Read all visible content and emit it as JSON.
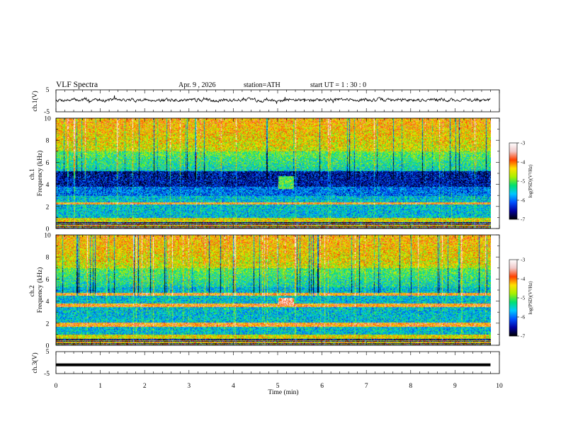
{
  "header": {
    "title": "VLF  Spectra",
    "date": "Apr. 9  , 2026",
    "station": "station=ATH",
    "start": "start  UT  =   1  : 30 : 0"
  },
  "chart_data": [
    {
      "type": "line",
      "panel": "ch1-waveform",
      "ylabel": "ch.1(V)",
      "ylim": [
        -5,
        5
      ],
      "yticks": [
        "5",
        "-5"
      ],
      "xlim": [
        0,
        10
      ],
      "trace_level_V": 0.4,
      "trace_amplitude_V": 1.0
    },
    {
      "type": "heatmap",
      "panel": "ch1-spectrogram",
      "ylabel": "ch.1\nFrequency  (kHz)",
      "ylim": [
        0,
        10
      ],
      "yticks": [
        "0",
        "2",
        "4",
        "6",
        "8",
        "10"
      ],
      "xlim": [
        0,
        9.8
      ],
      "colorbar": {
        "label": "log(PSD)(V²/Hz)",
        "range": [
          -7,
          -3
        ],
        "ticks": [
          "-3",
          "-4",
          "-5",
          "-6",
          "-7"
        ]
      },
      "bands": [
        {
          "freq_range_kHz": [
            3.8,
            5.2
          ],
          "log_psd": -6.5
        },
        {
          "freq_range_kHz": [
            3.0,
            3.8
          ],
          "log_psd": -6.0
        },
        {
          "freq_range_kHz": [
            2.2,
            2.4
          ],
          "log_psd": -4.0
        },
        {
          "freq_range_kHz": [
            0.6,
            1.0
          ],
          "log_psd": -4.5
        }
      ],
      "burst": {
        "time_min": [
          5.0,
          5.35
        ],
        "freq_range_kHz": [
          3.6,
          4.8
        ],
        "log_psd": -5.0
      }
    },
    {
      "type": "heatmap",
      "panel": "ch2-spectrogram",
      "ylabel": "ch.2\nFrequency  (kHz)",
      "ylim": [
        0,
        10
      ],
      "yticks": [
        "0",
        "2",
        "4",
        "6",
        "8",
        "10"
      ],
      "xlim": [
        0,
        9.8
      ],
      "colorbar": {
        "label": "log(PSD)(V²/Hz)",
        "range": [
          -7,
          -3
        ],
        "ticks": [
          "-3",
          "-4",
          "-5",
          "-6",
          "-7"
        ]
      },
      "bands": [
        {
          "freq_range_kHz": [
            4.5,
            4.8
          ],
          "log_psd": -4.0
        },
        {
          "freq_range_kHz": [
            3.5,
            3.8
          ],
          "log_psd": -4.0
        },
        {
          "freq_range_kHz": [
            1.7,
            2.1
          ],
          "log_psd": -4.0
        },
        {
          "freq_range_kHz": [
            0.6,
            1.0
          ],
          "log_psd": -4.5
        }
      ],
      "burst": {
        "time_min": [
          5.0,
          5.35
        ],
        "freq_range_kHz": [
          3.6,
          4.3
        ],
        "log_psd": -3.5
      }
    },
    {
      "type": "line",
      "panel": "ch3-waveform",
      "ylabel": "ch.3(V)",
      "ylim": [
        -5,
        5
      ],
      "yticks": [
        "5",
        "-5"
      ],
      "xlim": [
        0,
        10
      ],
      "trace_level_V": -1.0,
      "xlabel": "Time  (min)",
      "xticks": [
        "0",
        "1",
        "2",
        "3",
        "4",
        "5",
        "6",
        "7",
        "8",
        "9",
        "10"
      ]
    }
  ],
  "colors": {
    "colormap": [
      "#000000",
      "#0000a0",
      "#0050ff",
      "#00c8ff",
      "#00e070",
      "#a8f000",
      "#ffe000",
      "#ff4000",
      "#f0c8c8",
      "#ffffff"
    ],
    "trace": "#000000"
  }
}
